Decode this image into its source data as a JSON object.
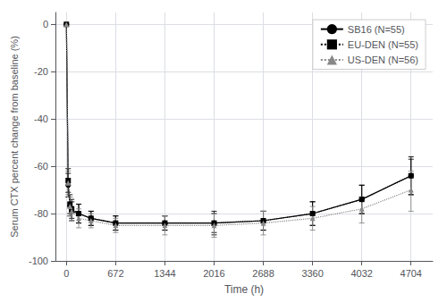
{
  "chart_data": {
    "type": "line",
    "xlabel": "Time (h)",
    "ylabel": "Serum CTX percent change from baseline (%)",
    "x": [
      0,
      24,
      48,
      72,
      168,
      336,
      672,
      1344,
      2016,
      2688,
      3360,
      4032,
      4704
    ],
    "series": [
      {
        "name": "SB16 (N=55)",
        "color": "#000000",
        "marker": "circle",
        "line_style": "solid",
        "values": [
          0,
          -68,
          -77,
          -79,
          -80,
          -82,
          -84,
          -84,
          -84,
          -83,
          -80,
          -74,
          -64
        ],
        "yerr_lo": [
          0,
          5,
          4,
          4,
          4,
          3,
          3,
          3,
          4,
          4,
          5,
          6,
          8
        ],
        "yerr_hi": [
          0,
          5,
          4,
          4,
          4,
          3,
          3,
          3,
          4,
          4,
          5,
          6,
          8
        ]
      },
      {
        "name": "EU-DEN (N=55)",
        "color": "#000000",
        "marker": "square",
        "line_style": "dotted",
        "values": [
          0,
          -66,
          -76,
          -78,
          -80,
          -82,
          -84,
          -84,
          -84,
          -83,
          -80,
          -74,
          -64
        ],
        "yerr_lo": [
          0,
          5,
          4,
          4,
          4,
          3,
          3,
          3,
          5,
          4,
          5,
          6,
          8
        ],
        "yerr_hi": [
          0,
          5,
          4,
          4,
          4,
          3,
          3,
          3,
          5,
          4,
          5,
          6,
          7
        ]
      },
      {
        "name": "US-DEN (N=56)",
        "color": "#888888",
        "marker": "triangle",
        "line_style": "dotted",
        "values": [
          0,
          -67,
          -77,
          -79,
          -82,
          -83,
          -85,
          -85,
          -85,
          -84,
          -82,
          -78,
          -70
        ],
        "yerr_lo": [
          0,
          5,
          4,
          4,
          4,
          3,
          3,
          4,
          5,
          5,
          5,
          6,
          9
        ],
        "yerr_hi": [
          0,
          5,
          4,
          4,
          4,
          3,
          3,
          4,
          5,
          5,
          5,
          5,
          8
        ]
      }
    ],
    "xlim": [
      -150,
      5000
    ],
    "ylim": [
      -100,
      5
    ],
    "xticks": [
      0,
      672,
      1344,
      2016,
      2688,
      3360,
      4032,
      4704
    ],
    "yticks": [
      0,
      -20,
      -40,
      -60,
      -80,
      -100
    ],
    "grid": true,
    "legend": "upper right"
  }
}
